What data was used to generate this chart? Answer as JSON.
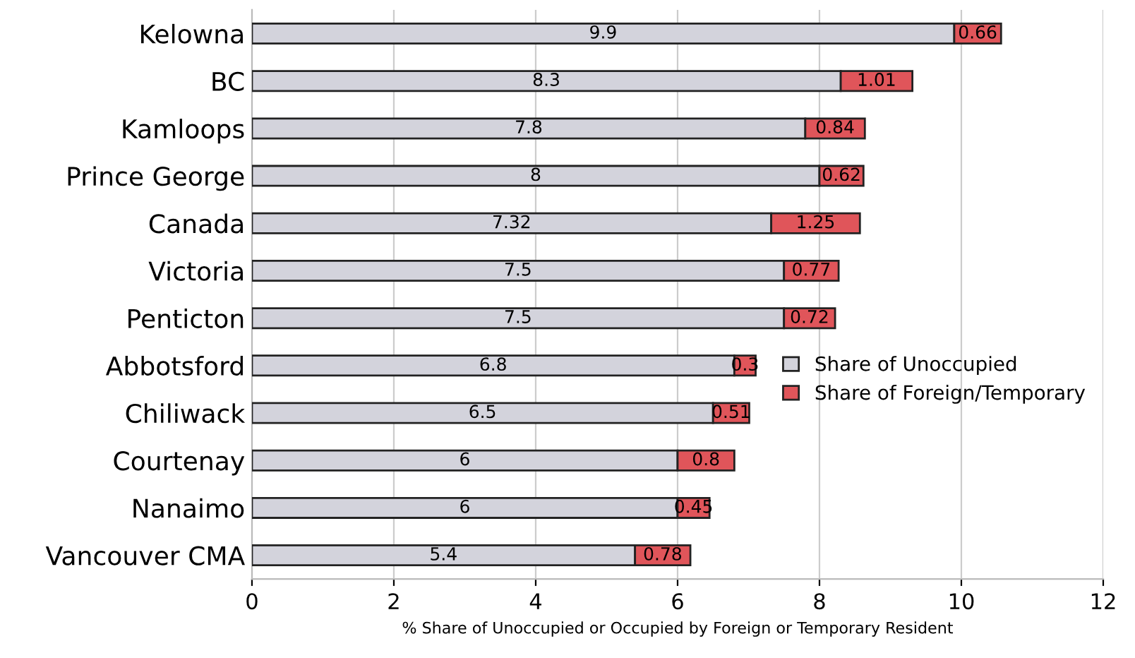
{
  "chart_data": {
    "type": "bar",
    "orientation": "horizontal",
    "stacked": true,
    "xlabel": "% Share of Unoccupied or Occupied by Foreign or Temporary Resident",
    "categories": [
      "Kelowna",
      "BC",
      "Kamloops",
      "Prince George",
      "Canada",
      "Victoria",
      "Penticton",
      "Abbotsford",
      "Chiliwack",
      "Courtenay",
      "Nanaimo",
      "Vancouver CMA"
    ],
    "series": [
      {
        "name": "Share of Unoccupied",
        "color": "#d3d3dc",
        "values": [
          9.9,
          8.3,
          7.8,
          8,
          7.32,
          7.5,
          7.5,
          6.8,
          6.5,
          6,
          6,
          5.4
        ]
      },
      {
        "name": "Share of Foreign/Temporary",
        "color": "#e0555a",
        "values": [
          0.66,
          1.01,
          0.84,
          0.62,
          1.25,
          0.77,
          0.72,
          0.3,
          0.51,
          0.8,
          0.45,
          0.78
        ]
      }
    ],
    "xlim": [
      0,
      12
    ],
    "xticks": [
      0,
      2,
      4,
      6,
      8,
      10,
      12
    ],
    "grid": "x",
    "legend": "right",
    "data_labels": true
  }
}
